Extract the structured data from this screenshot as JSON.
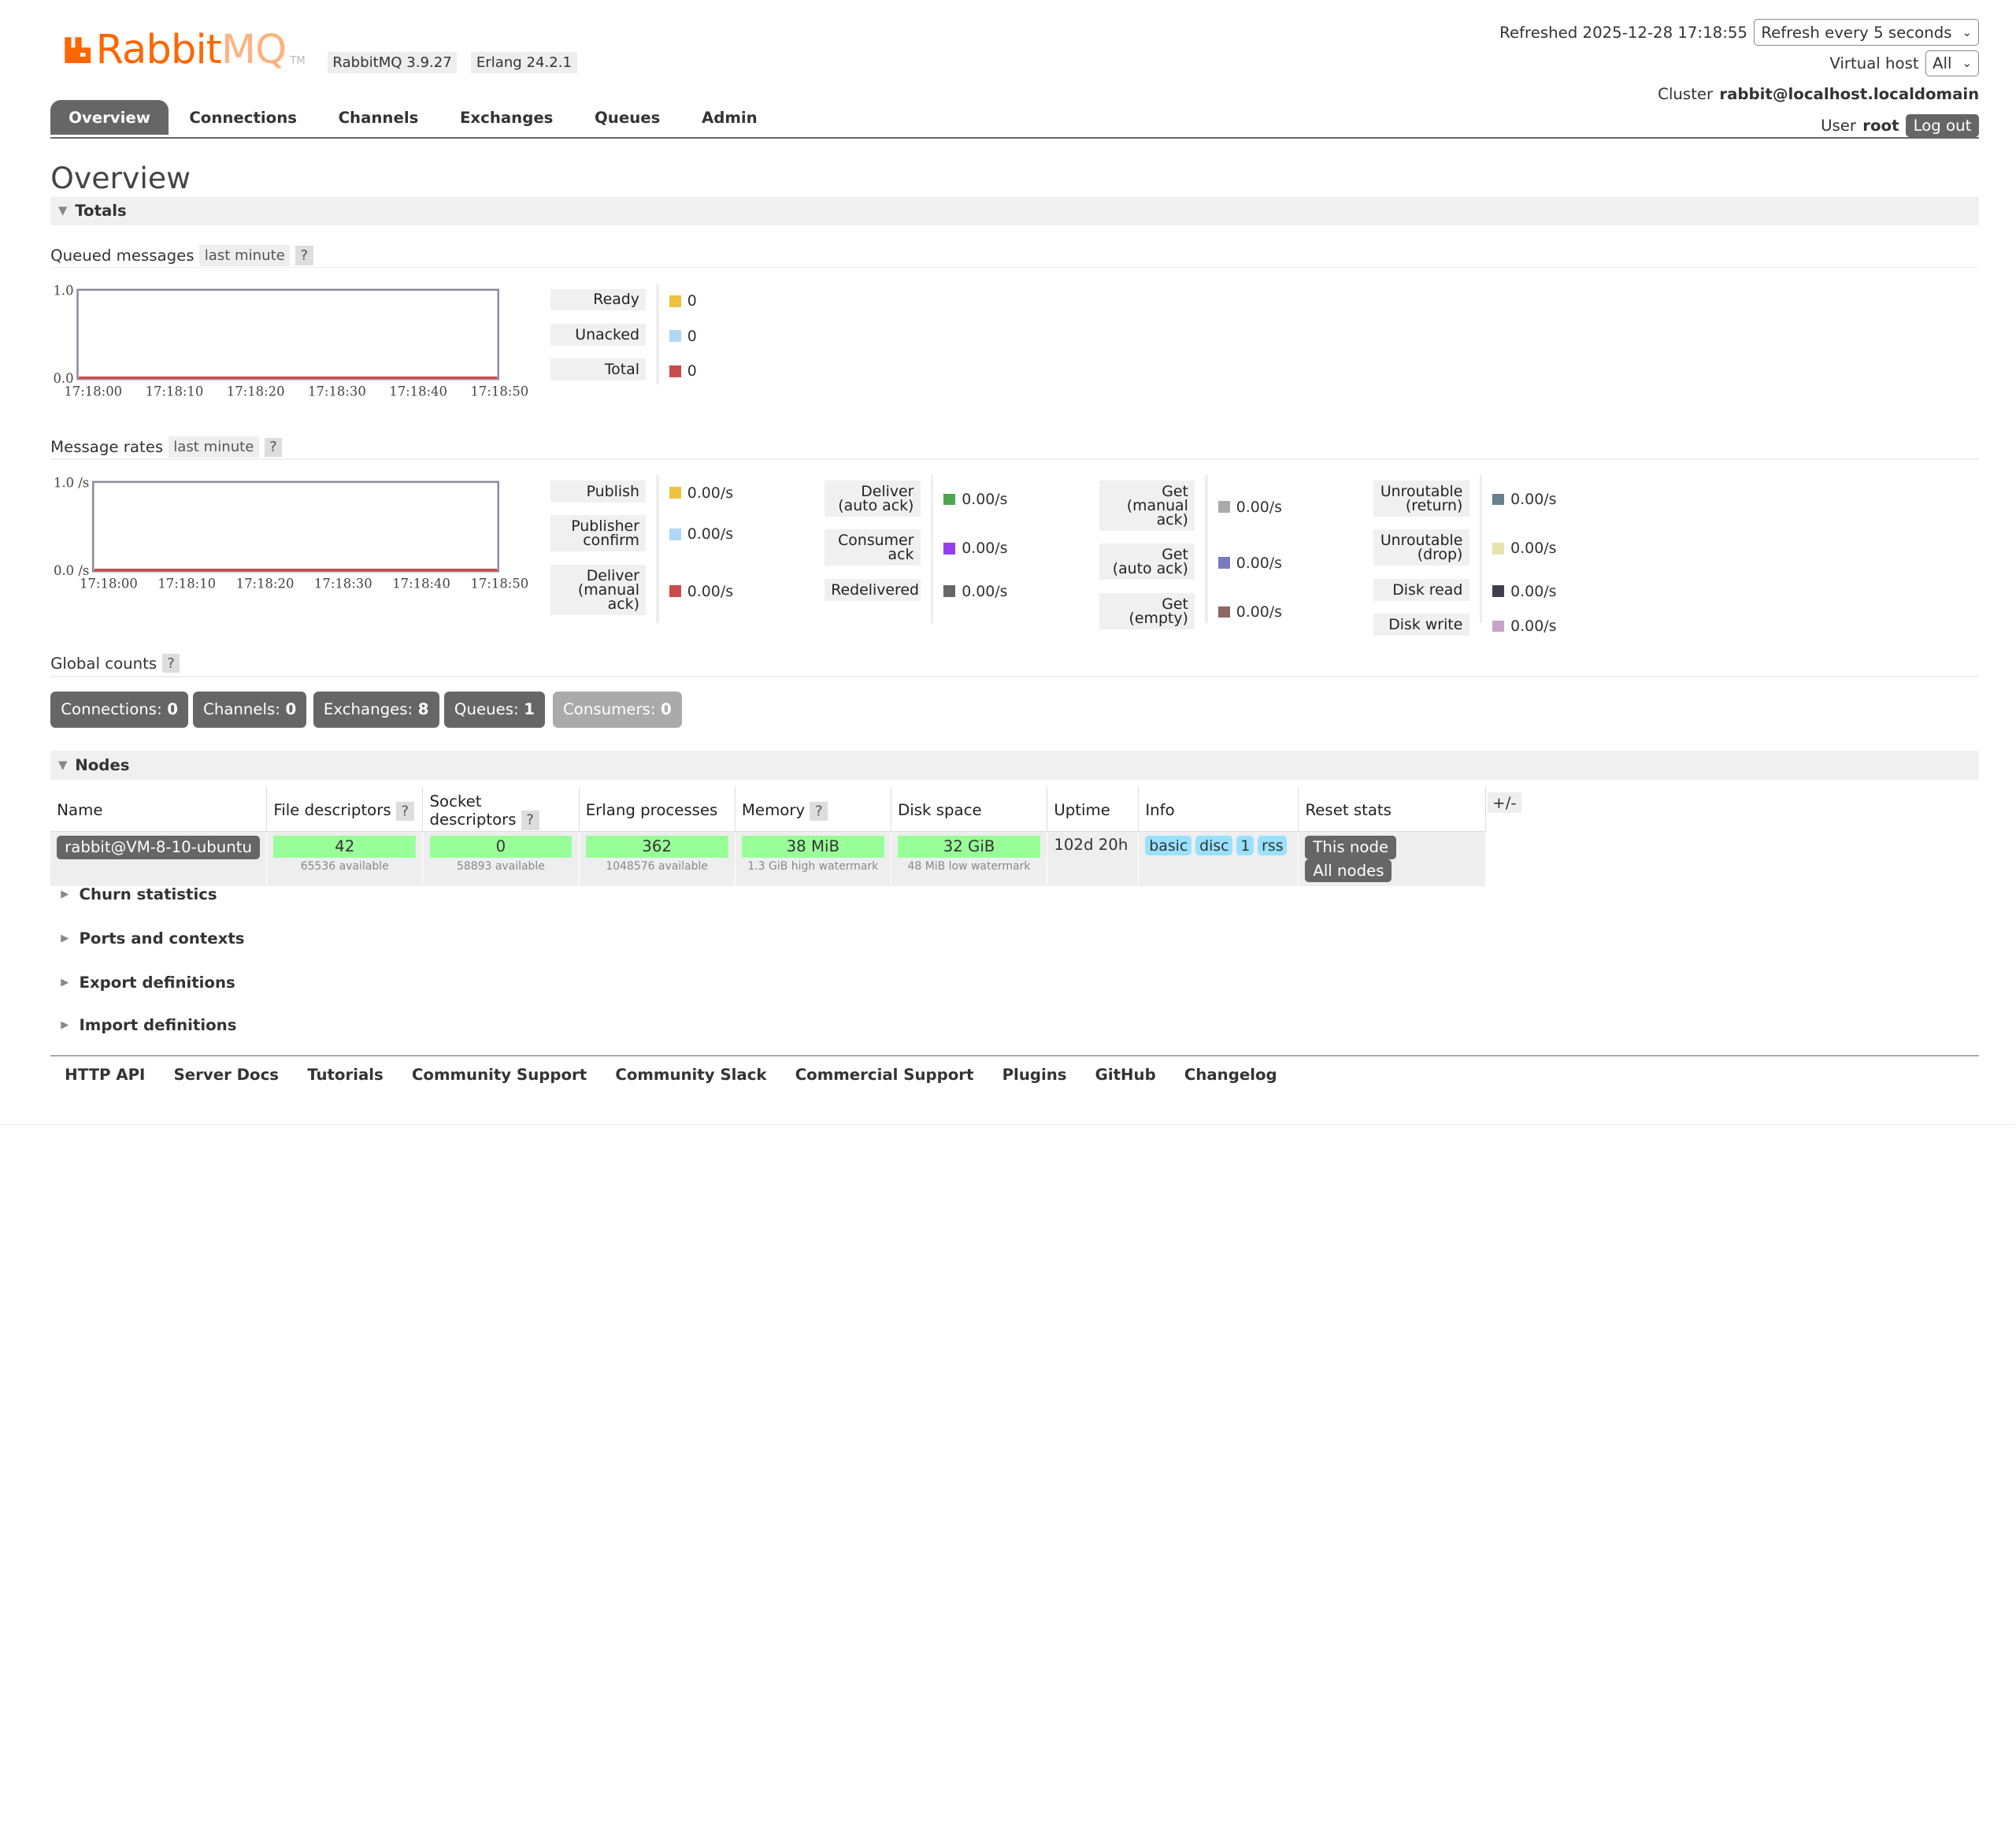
{
  "header": {
    "logo_text": "Rabbit",
    "logo_text2": "MQ",
    "logo_tm": "TM",
    "version": "RabbitMQ 3.9.27",
    "erlang": "Erlang 24.2.1",
    "refreshed_label": "Refreshed 2025-12-28 17:18:55",
    "refresh_select": "Refresh every 5 seconds",
    "vhost_label": "Virtual host",
    "vhost_select": "All",
    "cluster_label": "Cluster",
    "cluster_name": "rabbit@localhost.localdomain",
    "user_label": "User",
    "user_name": "root",
    "logout": "Log out"
  },
  "tabs": [
    "Overview",
    "Connections",
    "Channels",
    "Exchanges",
    "Queues",
    "Admin"
  ],
  "page_title": "Overview",
  "totals": {
    "section": "Totals",
    "queued_title": "Queued messages",
    "range_pill": "last minute",
    "help": "?",
    "queued_legend": [
      {
        "label": "Ready",
        "value": "0",
        "color": "#edc240"
      },
      {
        "label": "Unacked",
        "value": "0",
        "color": "#afd8f8"
      },
      {
        "label": "Total",
        "value": "0",
        "color": "#cb4b4b"
      }
    ],
    "rates_title": "Message rates",
    "rates_legend": [
      {
        "label": "Publish",
        "value": "0.00/s",
        "color": "#edc240"
      },
      {
        "label": "Publisher confirm",
        "value": "0.00/s",
        "color": "#afd8f8"
      },
      {
        "label": "Deliver (manual ack)",
        "value": "0.00/s",
        "color": "#cb4b4b"
      },
      {
        "label": "Deliver (auto ack)",
        "value": "0.00/s",
        "color": "#4da74d"
      },
      {
        "label": "Consumer ack",
        "value": "0.00/s",
        "color": "#9440ed"
      },
      {
        "label": "Redelivered",
        "value": "0.00/s",
        "color": "#666666"
      },
      {
        "label": "Get (manual ack)",
        "value": "0.00/s",
        "color": "#aaaaaa"
      },
      {
        "label": "Get (auto ack)",
        "value": "0.00/s",
        "color": "#7c79c3"
      },
      {
        "label": "Get (empty)",
        "value": "0.00/s",
        "color": "#8e6767"
      },
      {
        "label": "Unroutable (return)",
        "value": "0.00/s",
        "color": "#67808e"
      },
      {
        "label": "Unroutable (drop)",
        "value": "0.00/s",
        "color": "#e5e4ae"
      },
      {
        "label": "Disk read",
        "value": "0.00/s",
        "color": "#423d4f"
      },
      {
        "label": "Disk write",
        "value": "0.00/s",
        "color": "#c8a2c8"
      }
    ],
    "global_title": "Global counts",
    "global_counts": [
      {
        "label": "Connections:",
        "value": "0"
      },
      {
        "label": "Channels:",
        "value": "0"
      },
      {
        "label": "Exchanges:",
        "value": "8"
      },
      {
        "label": "Queues:",
        "value": "1"
      },
      {
        "label": "Consumers:",
        "value": "0"
      }
    ]
  },
  "chart_data": [
    {
      "type": "line",
      "title": "Queued messages",
      "x": [
        "17:18:00",
        "17:18:10",
        "17:18:20",
        "17:18:30",
        "17:18:40",
        "17:18:50"
      ],
      "series": [
        {
          "name": "Ready",
          "values": [
            0,
            0,
            0,
            0,
            0,
            0
          ]
        },
        {
          "name": "Unacked",
          "values": [
            0,
            0,
            0,
            0,
            0,
            0
          ]
        },
        {
          "name": "Total",
          "values": [
            0,
            0,
            0,
            0,
            0,
            0
          ]
        }
      ],
      "y_ticks": [
        "1.0",
        "0.0"
      ],
      "ylim": [
        0,
        1
      ]
    },
    {
      "type": "line",
      "title": "Message rates",
      "x": [
        "17:18:00",
        "17:18:10",
        "17:18:20",
        "17:18:30",
        "17:18:40",
        "17:18:50"
      ],
      "series": [
        {
          "name": "Publish",
          "values": [
            0,
            0,
            0,
            0,
            0,
            0
          ]
        }
      ],
      "y_ticks": [
        "1.0 /s",
        "0.0 /s"
      ],
      "ylim": [
        0,
        1
      ]
    }
  ],
  "nodes": {
    "section": "Nodes",
    "columns": [
      "Name",
      "File descriptors",
      "Socket descriptors",
      "Erlang processes",
      "Memory",
      "Disk space",
      "Uptime",
      "Info",
      "Reset stats"
    ],
    "help": "?",
    "row": {
      "name": "rabbit@VM-8-10-ubuntu",
      "fd": "42",
      "fd_sub": "65536 available",
      "sockets": "0",
      "sockets_sub": "58893 available",
      "procs": "362",
      "procs_sub": "1048576 available",
      "memory": "38 MiB",
      "memory_sub": "1.3 GiB high watermark",
      "disk": "32 GiB",
      "disk_sub": "48 MiB low watermark",
      "uptime": "102d 20h",
      "info": [
        "basic",
        "disc",
        "1",
        "rss"
      ],
      "reset_this": "This node",
      "reset_all": "All nodes"
    },
    "plus_minus": "+/-"
  },
  "collapsed_sections": [
    "Churn statistics",
    "Ports and contexts",
    "Export definitions",
    "Import definitions"
  ],
  "footer": [
    "HTTP API",
    "Server Docs",
    "Tutorials",
    "Community Support",
    "Community Slack",
    "Commercial Support",
    "Plugins",
    "GitHub",
    "Changelog"
  ]
}
